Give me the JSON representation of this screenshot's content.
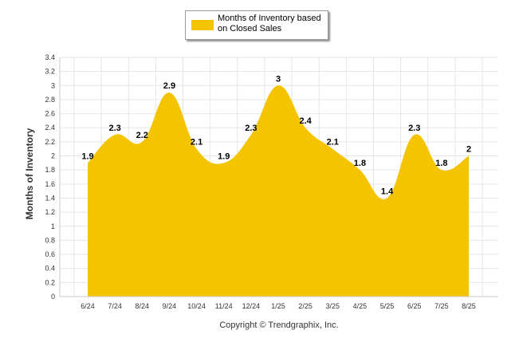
{
  "chart_data": {
    "type": "area",
    "categories": [
      "6/24",
      "7/24",
      "8/24",
      "9/24",
      "10/24",
      "11/24",
      "12/24",
      "1/25",
      "2/25",
      "3/25",
      "4/25",
      "5/25",
      "6/25",
      "7/25",
      "8/25"
    ],
    "series": [
      {
        "name": "Months of Inventory based on Closed Sales",
        "values": [
          1.9,
          2.3,
          2.2,
          2.9,
          2.1,
          1.9,
          2.3,
          3,
          2.4,
          2.1,
          1.8,
          1.4,
          2.3,
          1.8,
          2
        ]
      }
    ],
    "data_labels": [
      "1.9",
      "2.3",
      "2.2",
      "2.9",
      "2.1",
      "1.9",
      "2.3",
      "3",
      "2.4",
      "2.1",
      "1.8",
      "1.4",
      "2.3",
      "1.8",
      "2"
    ],
    "ylabel": "Months of Inventory",
    "ylim": [
      0,
      3.4
    ],
    "yticks": [
      "0",
      "0.2",
      "0.4",
      "0.6",
      "0.8",
      "1",
      "1.2",
      "1.4",
      "1.6",
      "1.8",
      "2",
      "2.2",
      "2.4",
      "2.6",
      "2.8",
      "3",
      "3.2",
      "3.4"
    ],
    "grid": true,
    "legend_position": "top-center",
    "colors": {
      "fill": "#f5c400",
      "grid": "#e6e6e6",
      "axis": "#c8c8c8"
    }
  },
  "legend": {
    "label": "Months of Inventory based on Closed Sales"
  },
  "footer": {
    "copyright": "Copyright © Trendgraphix, Inc."
  }
}
